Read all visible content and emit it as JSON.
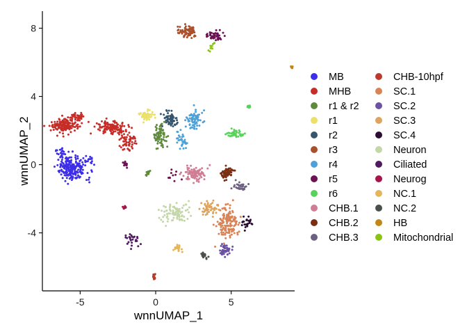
{
  "chart_data": {
    "type": "scatter",
    "title": "",
    "xlabel": "wnnUMAP_1",
    "ylabel": "wnnUMAP_2",
    "xlim": [
      -7.5,
      9.2
    ],
    "ylim": [
      -7.4,
      9.0
    ],
    "xticks": [
      -5,
      0,
      5
    ],
    "yticks": [
      -4,
      0,
      4,
      8
    ],
    "xtick_labels": [
      "-5",
      "0",
      "5"
    ],
    "ytick_labels": [
      "-4",
      "0",
      "4",
      "8"
    ],
    "grid": false,
    "legend_position": "right",
    "series": [
      {
        "name": "MB",
        "color": "#3d2ee8",
        "clusters": [
          {
            "center": [
              -5.5,
              -0.2
            ],
            "spread": [
              0.75,
              0.6
            ],
            "n": 220
          },
          {
            "center": [
              -6.3,
              0.8
            ],
            "spread": [
              0.3,
              0.3
            ],
            "n": 20
          },
          {
            "center": [
              -4.4,
              0.3
            ],
            "spread": [
              0.3,
              0.3
            ],
            "n": 15
          }
        ]
      },
      {
        "name": "MHB",
        "color": "#c62d28",
        "clusters": [
          {
            "center": [
              -6.0,
              2.3
            ],
            "spread": [
              0.75,
              0.35
            ],
            "n": 160
          },
          {
            "center": [
              -3.0,
              2.2
            ],
            "spread": [
              0.9,
              0.3
            ],
            "n": 120
          },
          {
            "center": [
              -1.8,
              1.4
            ],
            "spread": [
              0.5,
              0.6
            ],
            "n": 60
          },
          {
            "center": [
              -5.3,
              2.8
            ],
            "spread": [
              0.4,
              0.15
            ],
            "n": 30
          }
        ]
      },
      {
        "name": "r1 & r2",
        "color": "#5f8a3d",
        "clusters": [
          {
            "center": [
              0.3,
              1.7
            ],
            "spread": [
              0.4,
              0.55
            ],
            "n": 80
          },
          {
            "center": [
              -0.5,
              -0.5
            ],
            "spread": [
              0.1,
              0.15
            ],
            "n": 10
          }
        ]
      },
      {
        "name": "r1",
        "color": "#ebe06a",
        "clusters": [
          {
            "center": [
              -0.6,
              2.9
            ],
            "spread": [
              0.45,
              0.25
            ],
            "n": 50
          }
        ]
      },
      {
        "name": "r2",
        "color": "#37566e",
        "clusters": [
          {
            "center": [
              1.0,
              2.7
            ],
            "spread": [
              0.4,
              0.4
            ],
            "n": 60
          }
        ]
      },
      {
        "name": "r3",
        "color": "#a9502c",
        "clusters": [
          {
            "center": [
              2.1,
              7.8
            ],
            "spread": [
              0.45,
              0.3
            ],
            "n": 80
          }
        ]
      },
      {
        "name": "r4",
        "color": "#4ea1d6",
        "clusters": [
          {
            "center": [
              2.6,
              2.6
            ],
            "spread": [
              0.45,
              0.45
            ],
            "n": 70
          },
          {
            "center": [
              1.7,
              1.4
            ],
            "spread": [
              0.3,
              0.4
            ],
            "n": 30
          }
        ]
      },
      {
        "name": "r5",
        "color": "#6d1253",
        "clusters": [
          {
            "center": [
              3.9,
              7.6
            ],
            "spread": [
              0.5,
              0.25
            ],
            "n": 45
          },
          {
            "center": [
              -2.0,
              0.0
            ],
            "spread": [
              0.15,
              0.2
            ],
            "n": 12
          },
          {
            "center": [
              1.2,
              -0.6
            ],
            "spread": [
              0.3,
              0.3
            ],
            "n": 10
          }
        ]
      },
      {
        "name": "r6",
        "color": "#59d25c",
        "clusters": [
          {
            "center": [
              5.3,
              1.8
            ],
            "spread": [
              0.45,
              0.2
            ],
            "n": 40
          },
          {
            "center": [
              6.2,
              3.4
            ],
            "spread": [
              0.12,
              0.1
            ],
            "n": 14
          }
        ]
      },
      {
        "name": "CHB.1",
        "color": "#cf7e95",
        "clusters": [
          {
            "center": [
              2.6,
              -0.5
            ],
            "spread": [
              0.55,
              0.35
            ],
            "n": 90
          }
        ]
      },
      {
        "name": "CHB.2",
        "color": "#7a2e13",
        "clusters": [
          {
            "center": [
              4.7,
              -0.5
            ],
            "spread": [
              0.35,
              0.3
            ],
            "n": 60
          }
        ]
      },
      {
        "name": "CHB.3",
        "color": "#6d6181",
        "clusters": [
          {
            "center": [
              5.6,
              -1.3
            ],
            "spread": [
              0.3,
              0.25
            ],
            "n": 30
          }
        ]
      },
      {
        "name": "CHB-10hpf",
        "color": "#bb3a2c",
        "clusters": [
          {
            "center": [
              -0.1,
              -6.6
            ],
            "spread": [
              0.08,
              0.15
            ],
            "n": 14
          }
        ]
      },
      {
        "name": "SC.1",
        "color": "#d88457",
        "clusters": [
          {
            "center": [
              4.8,
              -3.4
            ],
            "spread": [
              0.55,
              0.8
            ],
            "n": 140
          }
        ]
      },
      {
        "name": "SC.2",
        "color": "#6b52a3",
        "clusters": [
          {
            "center": [
              4.6,
              -5.0
            ],
            "spread": [
              0.3,
              0.3
            ],
            "n": 45
          }
        ]
      },
      {
        "name": "SC.3",
        "color": "#dea45f",
        "clusters": [
          {
            "center": [
              3.6,
              -2.6
            ],
            "spread": [
              0.5,
              0.3
            ],
            "n": 55
          }
        ]
      },
      {
        "name": "SC.4",
        "color": "#2b0d33",
        "clusters": [
          {
            "center": [
              6.0,
              -3.4
            ],
            "spread": [
              0.3,
              0.35
            ],
            "n": 25
          }
        ]
      },
      {
        "name": "Neuron",
        "color": "#c3d7a8",
        "clusters": [
          {
            "center": [
              1.3,
              -2.8
            ],
            "spread": [
              0.8,
              0.5
            ],
            "n": 90
          }
        ]
      },
      {
        "name": "Ciliated",
        "color": "#4f1a60",
        "clusters": [
          {
            "center": [
              -1.5,
              -4.4
            ],
            "spread": [
              0.45,
              0.35
            ],
            "n": 25
          }
        ]
      },
      {
        "name": "Neurog",
        "color": "#a8134c",
        "clusters": [
          {
            "center": [
              -2.1,
              -2.5
            ],
            "spread": [
              0.12,
              0.1
            ],
            "n": 10
          }
        ]
      },
      {
        "name": "NC.1",
        "color": "#e3b659",
        "clusters": [
          {
            "center": [
              1.5,
              -4.9
            ],
            "spread": [
              0.25,
              0.15
            ],
            "n": 20
          }
        ]
      },
      {
        "name": "NC.2",
        "color": "#495049",
        "clusters": [
          {
            "center": [
              3.2,
              -5.3
            ],
            "spread": [
              0.25,
              0.15
            ],
            "n": 20
          }
        ]
      },
      {
        "name": "HB",
        "color": "#c38716",
        "clusters": [
          {
            "center": [
              9.0,
              5.7
            ],
            "spread": [
              0.08,
              0.07
            ],
            "n": 12
          }
        ]
      },
      {
        "name": "Mitochondrial",
        "color": "#8ac412",
        "clusters": [
          {
            "center": [
              3.6,
              6.9
            ],
            "spread": [
              0.3,
              0.4
            ],
            "n": 10
          }
        ]
      }
    ]
  }
}
